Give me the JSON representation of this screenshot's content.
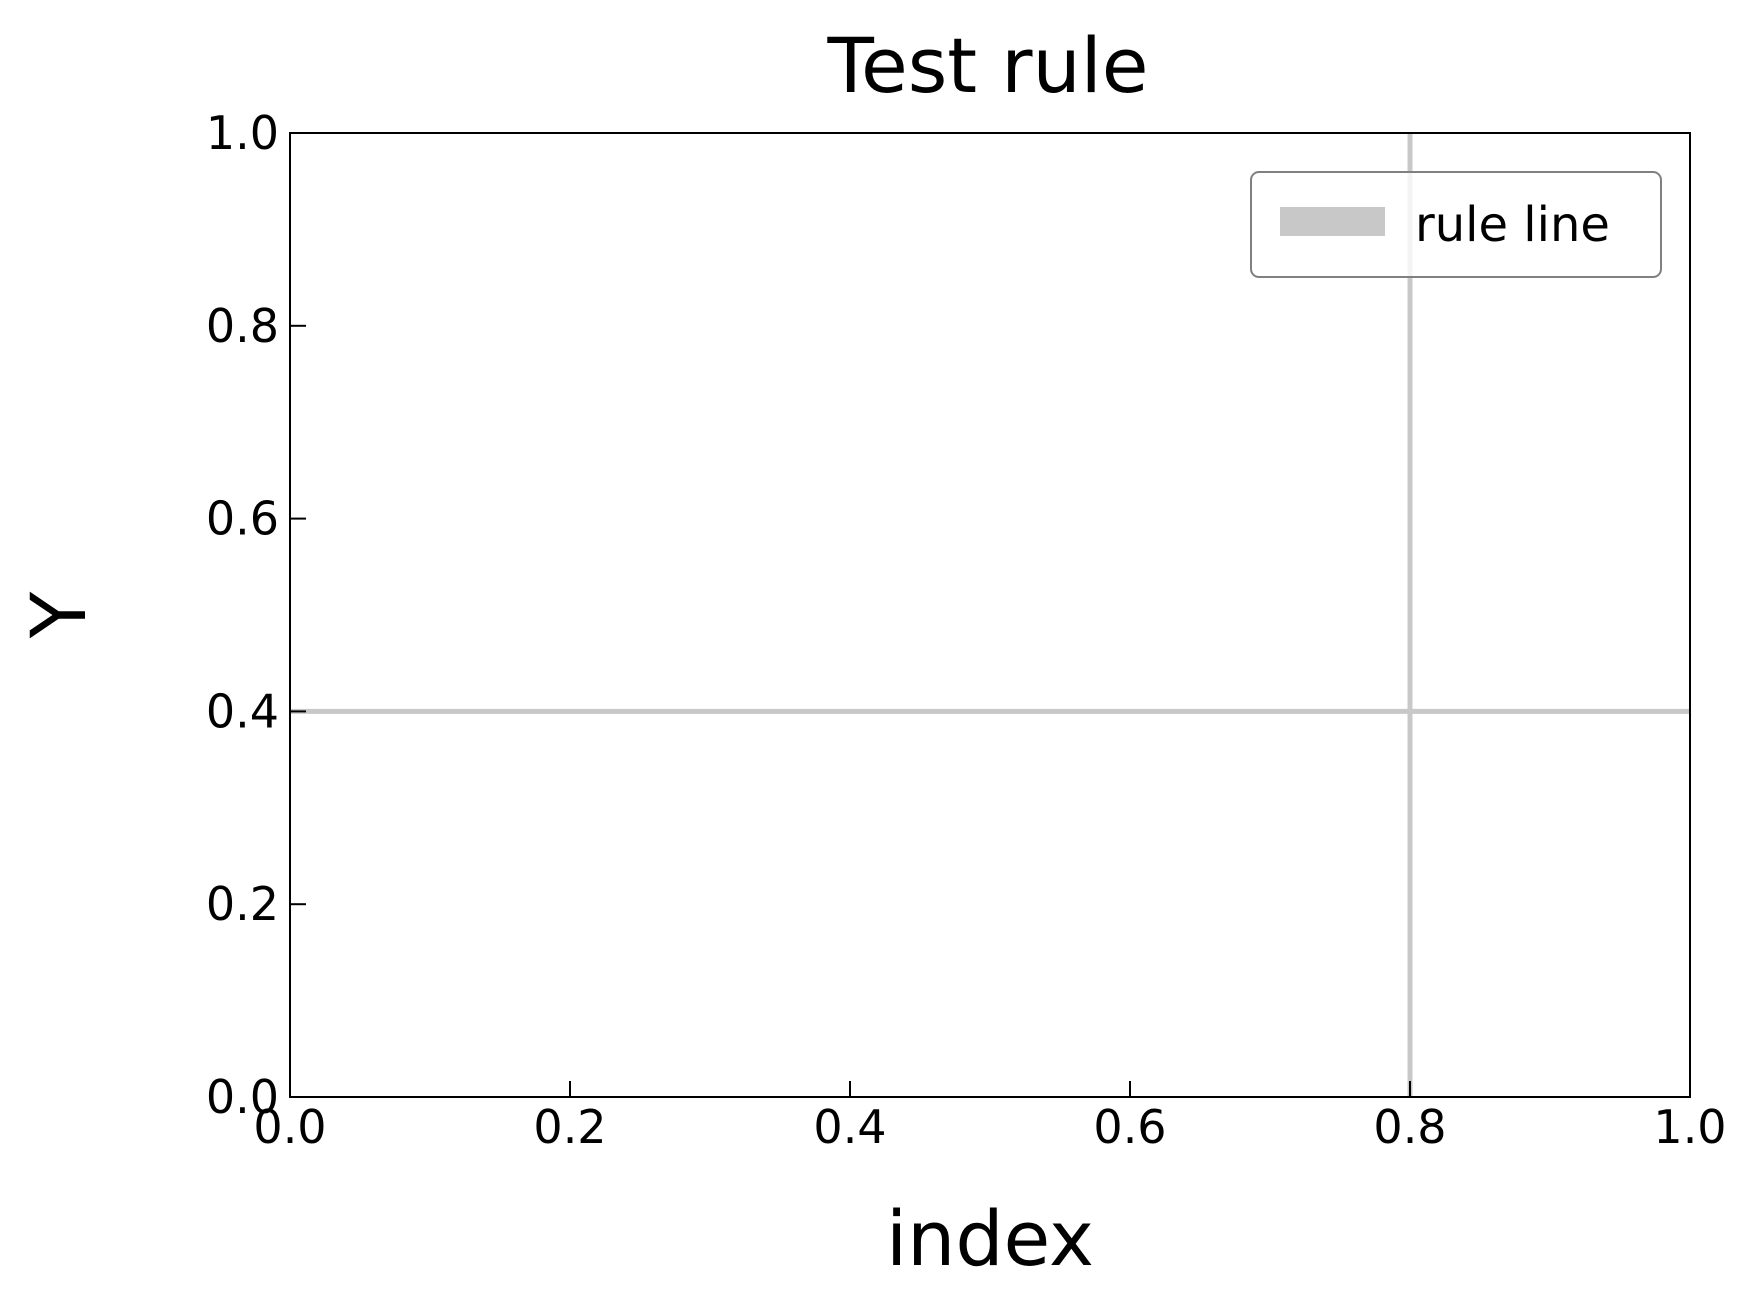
{
  "chart_data": {
    "type": "line",
    "title": "Test rule",
    "xlabel": "index",
    "ylabel": "Y",
    "xlim": [
      0.0,
      1.0
    ],
    "ylim": [
      0.0,
      1.0
    ],
    "xticks": [
      0.0,
      0.2,
      0.4,
      0.6,
      0.8,
      1.0
    ],
    "yticks": [
      0.0,
      0.2,
      0.4,
      0.6,
      0.8,
      1.0
    ],
    "xtick_labels": [
      "0.0",
      "0.2",
      "0.4",
      "0.6",
      "0.8",
      "1.0"
    ],
    "ytick_labels": [
      "0.0",
      "0.2",
      "0.4",
      "0.6",
      "0.8",
      "1.0"
    ],
    "grid": false,
    "legend": {
      "position": "top-right",
      "entries": [
        "rule line"
      ]
    },
    "series": [
      {
        "name": "rule line",
        "color": "#c8c8c8",
        "rules": [
          {
            "orientation": "horizontal",
            "y": 0.4
          },
          {
            "orientation": "vertical",
            "x": 0.8
          }
        ]
      }
    ]
  }
}
